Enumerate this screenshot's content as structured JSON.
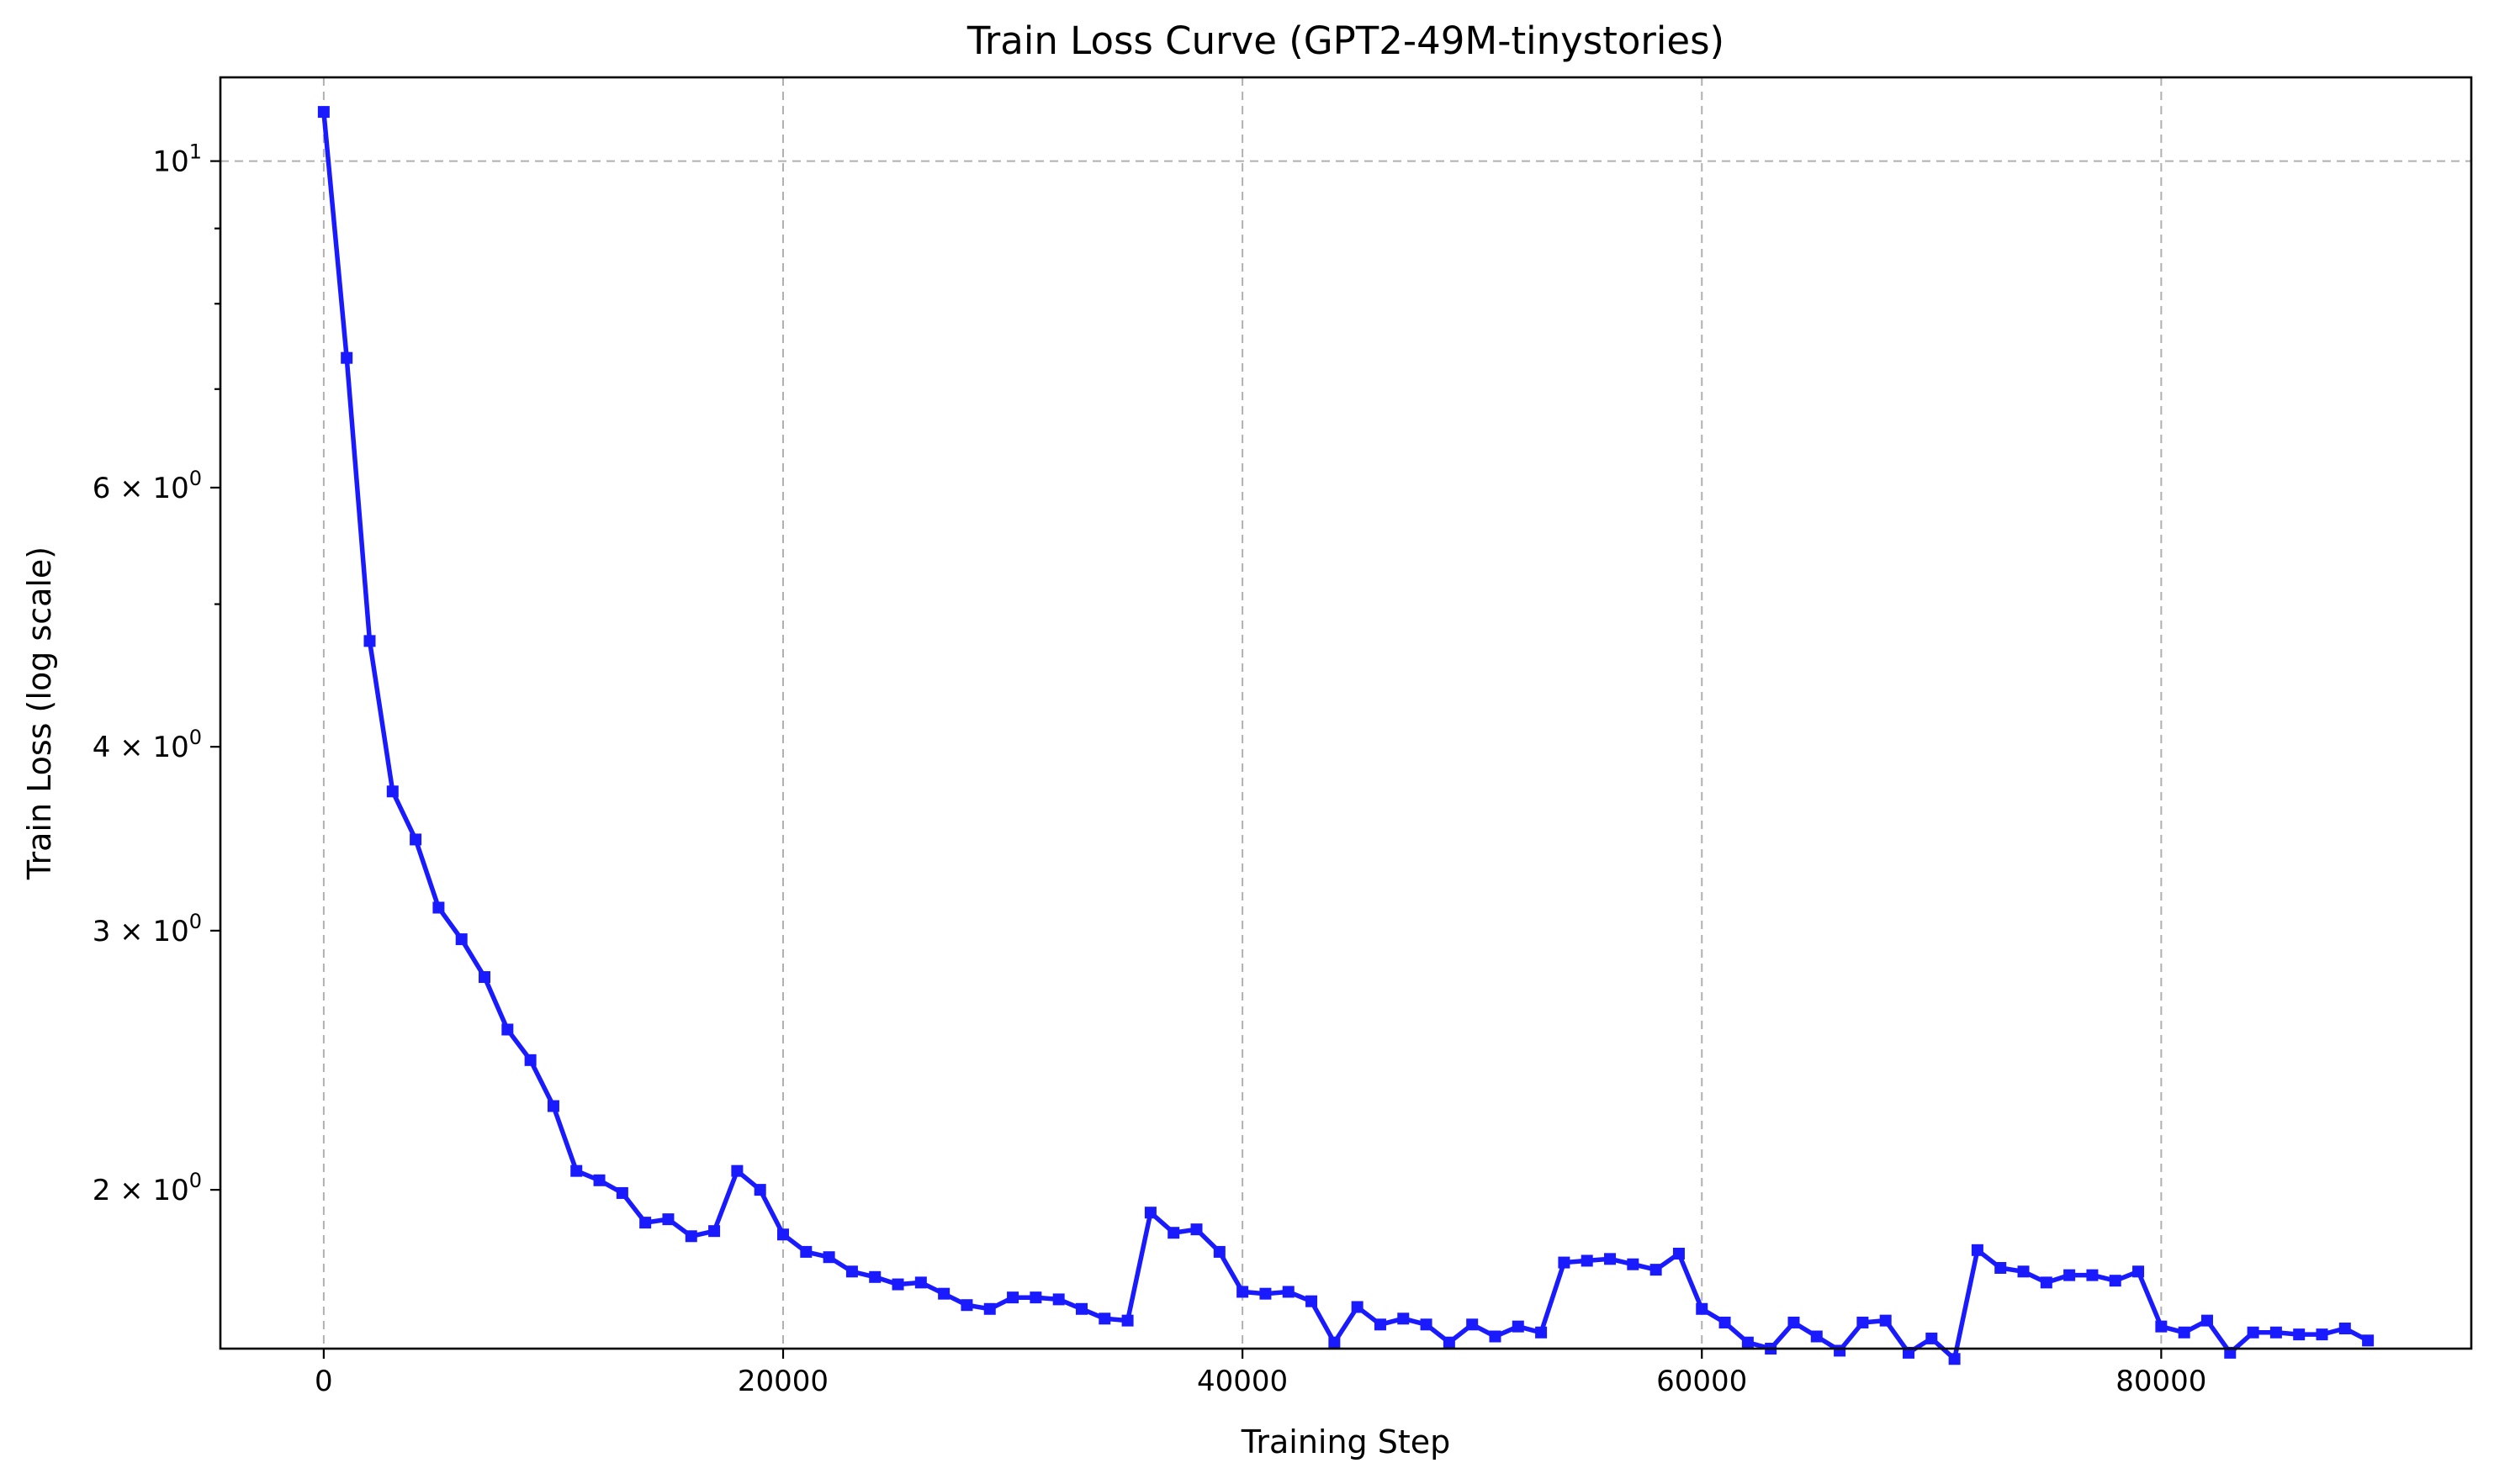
{
  "chart_data": {
    "type": "line",
    "title": "Train Loss Curve (GPT2-49M-tinystories)",
    "xlabel": "Training Step",
    "ylabel": "Train Loss (log scale)",
    "yscale": "log",
    "xlim": [
      -4500,
      93500
    ],
    "ylim": [
      1.56,
      11.4
    ],
    "grid": true,
    "x_ticks": [
      0,
      20000,
      40000,
      60000,
      80000
    ],
    "x_tick_labels": [
      "0",
      "20000",
      "40000",
      "60000",
      "80000"
    ],
    "y_ticks": [
      {
        "value": 10,
        "base": "10",
        "exp": "1",
        "mult": ""
      },
      {
        "value": 6,
        "base": "10",
        "exp": "0",
        "mult": "6 × "
      },
      {
        "value": 4,
        "base": "10",
        "exp": "0",
        "mult": "4 × "
      },
      {
        "value": 3,
        "base": "10",
        "exp": "0",
        "mult": "3 × "
      },
      {
        "value": 2,
        "base": "10",
        "exp": "0",
        "mult": "2 × "
      }
    ],
    "y_minor_ticks": [
      5,
      7,
      8,
      9
    ],
    "series_color": "#1a1aff",
    "x": [
      0,
      1000,
      2000,
      3000,
      4000,
      5000,
      6000,
      7000,
      8000,
      9000,
      10000,
      11000,
      12000,
      13000,
      14000,
      15000,
      16000,
      17000,
      18000,
      19000,
      20000,
      21000,
      22000,
      23000,
      24000,
      25000,
      26000,
      27000,
      28000,
      29000,
      30000,
      31000,
      32000,
      33000,
      34000,
      35000,
      36000,
      37000,
      38000,
      39000,
      40000,
      41000,
      42000,
      43000,
      44000,
      45000,
      46000,
      47000,
      48000,
      49000,
      50000,
      51000,
      52000,
      53000,
      54000,
      55000,
      56000,
      57000,
      58000,
      59000,
      60000,
      61000,
      62000,
      63000,
      64000,
      65000,
      66000,
      67000,
      68000,
      69000,
      70000,
      71000,
      72000,
      73000,
      74000,
      75000,
      76000,
      77000,
      78000,
      79000,
      80000,
      81000,
      82000,
      83000,
      84000,
      85000,
      86000,
      87000,
      88000,
      89000
    ],
    "y": [
      10.8,
      7.35,
      4.72,
      3.73,
      3.46,
      3.11,
      2.96,
      2.79,
      2.57,
      2.45,
      2.28,
      2.06,
      2.03,
      1.99,
      1.9,
      1.91,
      1.86,
      1.875,
      2.06,
      2.0,
      1.865,
      1.815,
      1.8,
      1.76,
      1.745,
      1.725,
      1.73,
      1.7,
      1.67,
      1.66,
      1.69,
      1.69,
      1.685,
      1.66,
      1.635,
      1.63,
      1.93,
      1.87,
      1.88,
      1.815,
      1.705,
      1.7,
      1.705,
      1.68,
      1.575,
      1.665,
      1.62,
      1.635,
      1.62,
      1.575,
      1.62,
      1.59,
      1.615,
      1.6,
      1.785,
      1.79,
      1.795,
      1.78,
      1.765,
      1.81,
      1.66,
      1.625,
      1.575,
      1.56,
      1.625,
      1.59,
      1.555,
      1.625,
      1.63,
      1.55,
      1.585,
      1.535,
      1.82,
      1.77,
      1.76,
      1.73,
      1.75,
      1.75,
      1.735,
      1.76,
      1.615,
      1.6,
      1.63,
      1.55,
      1.6,
      1.6,
      1.595,
      1.595,
      1.61,
      1.58
    ]
  }
}
